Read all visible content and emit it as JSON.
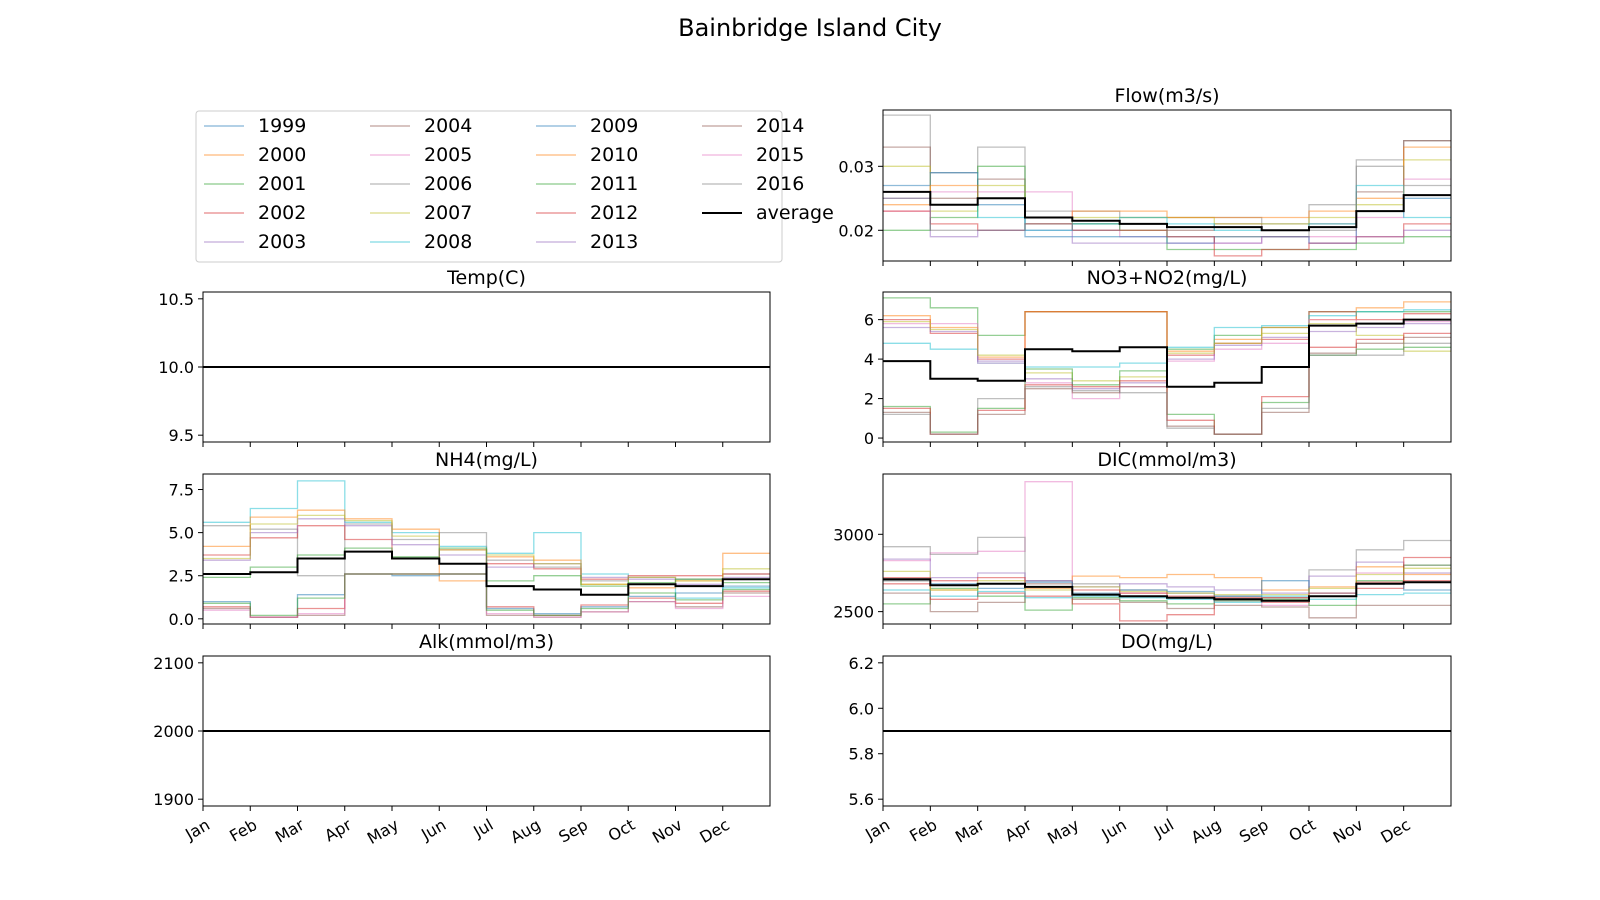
{
  "figure": {
    "title": "Bainbridge Island City"
  },
  "legend": {
    "items": [
      {
        "label": "1999",
        "color": "#1f77b4"
      },
      {
        "label": "2004",
        "color": "#8c564b"
      },
      {
        "label": "2009",
        "color": "#1f77b4"
      },
      {
        "label": "2014",
        "color": "#8c564b"
      },
      {
        "label": "2000",
        "color": "#ff7f0e"
      },
      {
        "label": "2005",
        "color": "#e377c2"
      },
      {
        "label": "2010",
        "color": "#ff7f0e"
      },
      {
        "label": "2015",
        "color": "#e377c2"
      },
      {
        "label": "2001",
        "color": "#2ca02c"
      },
      {
        "label": "2006",
        "color": "#7f7f7f"
      },
      {
        "label": "2011",
        "color": "#2ca02c"
      },
      {
        "label": "2016",
        "color": "#7f7f7f"
      },
      {
        "label": "2002",
        "color": "#d62728"
      },
      {
        "label": "2007",
        "color": "#bcbd22"
      },
      {
        "label": "2012",
        "color": "#d62728"
      },
      {
        "label": "average",
        "color": "#000000"
      },
      {
        "label": "2003",
        "color": "#9467bd"
      },
      {
        "label": "2008",
        "color": "#17becf"
      },
      {
        "label": "2013",
        "color": "#9467bd"
      }
    ]
  },
  "months": [
    "Jan",
    "Feb",
    "Mar",
    "Apr",
    "May",
    "Jun",
    "Jul",
    "Aug",
    "Sep",
    "Oct",
    "Nov",
    "Dec"
  ],
  "chart_data": [
    {
      "id": "temp",
      "type": "line",
      "title": "Temp(C)",
      "ylim": [
        9.45,
        10.55
      ],
      "yticks": [
        9.5,
        10.0,
        10.5
      ],
      "ytick_labels": [
        "9.5",
        "10.0",
        "10.5"
      ],
      "years": [],
      "average": [
        10,
        10,
        10,
        10,
        10,
        10,
        10,
        10,
        10,
        10,
        10,
        10
      ]
    },
    {
      "id": "nh4",
      "type": "line",
      "title": "NH4(mg/L)",
      "ylim": [
        -0.3,
        8.4
      ],
      "yticks": [
        0.0,
        2.5,
        5.0,
        7.5
      ],
      "ytick_labels": [
        "0.0",
        "2.5",
        "5.0",
        "7.5"
      ],
      "years": [
        {
          "name": "2008",
          "color": "#17becf",
          "values": [
            5.6,
            6.4,
            8.0,
            5.6,
            5.0,
            4.2,
            3.8,
            5.0,
            2.6,
            2.0,
            1.2,
            1.8
          ]
        },
        {
          "name": "2006",
          "color": "#7f7f7f",
          "values": [
            5.4,
            5.2,
            2.5,
            5.5,
            4.6,
            5.0,
            3.4,
            3.0,
            2.2,
            2.4,
            2.3,
            2.6
          ]
        },
        {
          "name": "2000",
          "color": "#ff7f0e",
          "values": [
            4.2,
            5.9,
            6.3,
            5.8,
            5.2,
            2.2,
            3.6,
            3.4,
            2.0,
            1.8,
            2.2,
            3.8
          ]
        },
        {
          "name": "2002",
          "color": "#d62728",
          "values": [
            3.7,
            4.7,
            5.4,
            4.6,
            3.5,
            4.0,
            3.2,
            2.9,
            2.3,
            2.5,
            2.5,
            2.6
          ]
        },
        {
          "name": "2003",
          "color": "#9467bd",
          "values": [
            3.4,
            5.0,
            5.8,
            5.4,
            4.3,
            3.7,
            3.0,
            3.2,
            2.4,
            2.3,
            2.0,
            2.4
          ]
        },
        {
          "name": "2007",
          "color": "#bcbd22",
          "values": [
            3.5,
            5.5,
            6.0,
            5.7,
            4.8,
            4.0,
            3.7,
            3.2,
            2.0,
            2.4,
            2.2,
            2.9
          ]
        },
        {
          "name": "2001",
          "color": "#2ca02c",
          "values": [
            2.4,
            3.0,
            3.7,
            4.1,
            3.6,
            4.1,
            2.2,
            2.5,
            1.9,
            2.1,
            2.3,
            2.1
          ]
        },
        {
          "name": "2009",
          "color": "#1f77b4",
          "values": [
            1.0,
            0.1,
            1.4,
            2.6,
            2.5,
            2.6,
            0.6,
            0.3,
            0.7,
            1.3,
            1.5,
            1.9
          ]
        },
        {
          "name": "2004",
          "color": "#8c564b",
          "values": [
            0.6,
            0.1,
            0.2,
            2.6,
            2.6,
            2.6,
            0.2,
            0.1,
            0.4,
            1.0,
            0.7,
            1.5
          ]
        },
        {
          "name": "2012",
          "color": "#d62728",
          "values": [
            0.7,
            0.1,
            0.6,
            2.6,
            2.6,
            2.6,
            0.7,
            0.2,
            0.8,
            1.2,
            0.9,
            1.6
          ]
        },
        {
          "name": "2015",
          "color": "#e377c2",
          "values": [
            0.5,
            0.1,
            0.3,
            2.6,
            2.6,
            2.6,
            0.3,
            0.1,
            0.4,
            1.0,
            0.6,
            1.3
          ]
        },
        {
          "name": "2011",
          "color": "#2ca02c",
          "values": [
            0.9,
            0.2,
            1.2,
            2.6,
            2.6,
            2.6,
            0.5,
            0.2,
            0.6,
            1.5,
            1.1,
            1.7
          ]
        }
      ],
      "average": [
        2.6,
        2.7,
        3.5,
        3.9,
        3.5,
        3.2,
        1.9,
        1.7,
        1.4,
        2.0,
        1.9,
        2.3
      ]
    },
    {
      "id": "alk",
      "type": "line",
      "title": "Alk(mmol/m3)",
      "ylim": [
        1890,
        2110
      ],
      "yticks": [
        1900,
        2000,
        2100
      ],
      "ytick_labels": [
        "1900",
        "2000",
        "2100"
      ],
      "years": [],
      "average": [
        2000,
        2000,
        2000,
        2000,
        2000,
        2000,
        2000,
        2000,
        2000,
        2000,
        2000,
        2000
      ]
    },
    {
      "id": "flow",
      "type": "line",
      "title": "Flow(m3/s)",
      "ylim": [
        0.0152,
        0.0388
      ],
      "yticks": [
        0.02,
        0.03
      ],
      "ytick_labels": [
        "0.02",
        "0.03"
      ],
      "years": [
        {
          "name": "2006",
          "color": "#7f7f7f",
          "values": [
            0.038,
            0.029,
            0.033,
            0.023,
            0.023,
            0.022,
            0.022,
            0.022,
            0.021,
            0.024,
            0.031,
            0.034
          ]
        },
        {
          "name": "2004",
          "color": "#8c564b",
          "values": [
            0.033,
            0.025,
            0.028,
            0.021,
            0.021,
            0.021,
            0.02,
            0.021,
            0.02,
            0.021,
            0.026,
            0.034
          ]
        },
        {
          "name": "2007",
          "color": "#bcbd22",
          "values": [
            0.03,
            0.023,
            0.027,
            0.022,
            0.022,
            0.022,
            0.022,
            0.021,
            0.021,
            0.022,
            0.024,
            0.031
          ]
        },
        {
          "name": "2005",
          "color": "#e377c2",
          "values": [
            0.023,
            0.026,
            0.026,
            0.026,
            0.02,
            0.019,
            0.019,
            0.018,
            0.019,
            0.019,
            0.022,
            0.028
          ]
        },
        {
          "name": "2001",
          "color": "#2ca02c",
          "values": [
            0.02,
            0.022,
            0.03,
            0.022,
            0.021,
            0.02,
            0.017,
            0.017,
            0.017,
            0.017,
            0.018,
            0.019
          ]
        },
        {
          "name": "1999",
          "color": "#1f77b4",
          "values": [
            0.027,
            0.029,
            0.024,
            0.019,
            0.019,
            0.019,
            0.018,
            0.019,
            0.019,
            0.018,
            0.023,
            0.025
          ]
        },
        {
          "name": "2010",
          "color": "#ff7f0e",
          "values": [
            0.024,
            0.027,
            0.025,
            0.022,
            0.023,
            0.023,
            0.022,
            0.022,
            0.022,
            0.023,
            0.025,
            0.033
          ]
        },
        {
          "name": "2002",
          "color": "#d62728",
          "values": [
            0.023,
            0.021,
            0.02,
            0.021,
            0.02,
            0.02,
            0.019,
            0.016,
            0.017,
            0.018,
            0.019,
            0.021
          ]
        },
        {
          "name": "2013",
          "color": "#9467bd",
          "values": [
            0.025,
            0.019,
            0.02,
            0.02,
            0.018,
            0.018,
            0.018,
            0.018,
            0.019,
            0.018,
            0.019,
            0.02
          ]
        },
        {
          "name": "2008",
          "color": "#17becf",
          "values": [
            0.026,
            0.024,
            0.022,
            0.02,
            0.021,
            0.022,
            0.021,
            0.02,
            0.02,
            0.021,
            0.027,
            0.022
          ]
        },
        {
          "name": "2016",
          "color": "#7f7f7f",
          "values": [
            0.025,
            0.02,
            0.02,
            0.021,
            0.02,
            0.021,
            0.019,
            0.019,
            0.019,
            0.02,
            0.03,
            0.027
          ]
        }
      ],
      "average": [
        0.026,
        0.024,
        0.025,
        0.022,
        0.0215,
        0.021,
        0.0205,
        0.0205,
        0.02,
        0.0205,
        0.023,
        0.0255
      ]
    },
    {
      "id": "no3",
      "type": "line",
      "title": "NO3+NO2(mg/L)",
      "ylim": [
        -0.2,
        7.4
      ],
      "yticks": [
        0,
        2,
        4,
        6
      ],
      "ytick_labels": [
        "0",
        "2",
        "4",
        "6"
      ],
      "years": [
        {
          "name": "2001",
          "color": "#2ca02c",
          "values": [
            7.1,
            6.6,
            5.2,
            6.4,
            6.4,
            6.4,
            4.5,
            5.2,
            5.6,
            6.4,
            6.4,
            6.4
          ]
        },
        {
          "name": "2002",
          "color": "#d62728",
          "values": [
            6.0,
            5.3,
            4.0,
            6.4,
            6.4,
            6.4,
            4.2,
            4.8,
            5.0,
            6.4,
            6.0,
            6.3
          ]
        },
        {
          "name": "2000",
          "color": "#ff7f0e",
          "values": [
            6.2,
            5.6,
            4.1,
            6.4,
            6.4,
            6.4,
            4.4,
            5.0,
            5.6,
            6.0,
            6.6,
            6.9
          ]
        },
        {
          "name": "2008",
          "color": "#17becf",
          "values": [
            4.8,
            4.5,
            3.8,
            3.6,
            3.6,
            3.8,
            4.6,
            5.6,
            5.7,
            6.2,
            6.4,
            6.5
          ]
        },
        {
          "name": "2005",
          "color": "#e377c2",
          "values": [
            5.8,
            5.8,
            3.8,
            2.8,
            2.0,
            2.6,
            3.9,
            4.5,
            4.8,
            6.0,
            5.8,
            5.9
          ]
        },
        {
          "name": "2003",
          "color": "#9467bd",
          "values": [
            5.6,
            5.4,
            3.9,
            3.0,
            2.5,
            2.8,
            4.0,
            4.7,
            5.1,
            5.4,
            5.6,
            5.8
          ]
        },
        {
          "name": "2007",
          "color": "#bcbd22",
          "values": [
            5.9,
            5.5,
            4.2,
            3.3,
            2.9,
            3.1,
            4.3,
            4.8,
            5.3,
            5.8,
            5.2,
            4.4
          ]
        },
        {
          "name": "2011",
          "color": "#2ca02c",
          "values": [
            1.6,
            0.3,
            1.5,
            3.5,
            2.7,
            3.4,
            1.2,
            0.2,
            1.8,
            4.2,
            4.5,
            4.6
          ]
        },
        {
          "name": "2004",
          "color": "#8c564b",
          "values": [
            1.3,
            0.2,
            1.2,
            2.5,
            2.3,
            2.6,
            0.6,
            0.2,
            1.3,
            4.3,
            4.8,
            5.1
          ]
        },
        {
          "name": "2012",
          "color": "#d62728",
          "values": [
            1.5,
            0.2,
            1.4,
            2.7,
            2.6,
            2.9,
            0.9,
            0.2,
            2.1,
            4.6,
            5.0,
            5.3
          ]
        },
        {
          "name": "2006",
          "color": "#7f7f7f",
          "values": [
            1.2,
            0.2,
            2.0,
            2.6,
            2.4,
            2.3,
            0.5,
            0.2,
            1.5,
            4.2,
            4.2,
            4.8
          ]
        }
      ],
      "average": [
        3.9,
        3.0,
        2.9,
        4.5,
        4.4,
        4.6,
        2.6,
        2.8,
        3.6,
        5.7,
        5.8,
        6.0
      ]
    },
    {
      "id": "dic",
      "type": "line",
      "title": "DIC(mmol/m3)",
      "ylim": [
        2420,
        3390
      ],
      "yticks": [
        2500,
        3000
      ],
      "ytick_labels": [
        "2500",
        "3000"
      ],
      "years": [
        {
          "name": "2005",
          "color": "#e377c2",
          "values": [
            2830,
            2880,
            2890,
            3340,
            2610,
            2620,
            2590,
            2570,
            2540,
            2600,
            2750,
            2800
          ]
        },
        {
          "name": "2006",
          "color": "#7f7f7f",
          "values": [
            2920,
            2870,
            2980,
            2700,
            2680,
            2640,
            2620,
            2600,
            2590,
            2770,
            2900,
            2960
          ]
        },
        {
          "name": "2010",
          "color": "#ff7f0e",
          "values": [
            2700,
            2640,
            2680,
            2650,
            2730,
            2720,
            2740,
            2720,
            2640,
            2660,
            2790,
            2740
          ]
        },
        {
          "name": "2003",
          "color": "#9467bd",
          "values": [
            2840,
            2720,
            2750,
            2700,
            2660,
            2680,
            2660,
            2640,
            2620,
            2730,
            2820,
            2750
          ]
        },
        {
          "name": "2001",
          "color": "#2ca02c",
          "values": [
            2550,
            2650,
            2600,
            2510,
            2590,
            2570,
            2550,
            2570,
            2580,
            2540,
            2700,
            2800
          ]
        },
        {
          "name": "2004",
          "color": "#8c564b",
          "values": [
            2620,
            2500,
            2560,
            2680,
            2580,
            2560,
            2520,
            2540,
            2530,
            2460,
            2540,
            2540
          ]
        },
        {
          "name": "2002",
          "color": "#d62728",
          "values": [
            2680,
            2580,
            2620,
            2600,
            2550,
            2440,
            2480,
            2580,
            2560,
            2600,
            2650,
            2850
          ]
        },
        {
          "name": "1999",
          "color": "#1f77b4",
          "values": [
            2700,
            2680,
            2650,
            2690,
            2620,
            2640,
            2630,
            2600,
            2700,
            2620,
            2680,
            2640
          ]
        },
        {
          "name": "2008",
          "color": "#17becf",
          "values": [
            2640,
            2600,
            2630,
            2590,
            2600,
            2590,
            2580,
            2560,
            2600,
            2580,
            2610,
            2620
          ]
        },
        {
          "name": "2007",
          "color": "#bcbd22",
          "values": [
            2760,
            2640,
            2700,
            2640,
            2660,
            2630,
            2620,
            2610,
            2610,
            2650,
            2740,
            2780
          ]
        },
        {
          "name": "2012",
          "color": "#d62728",
          "values": [
            2720,
            2700,
            2720,
            2660,
            2640,
            2620,
            2600,
            2590,
            2590,
            2620,
            2690,
            2700
          ]
        }
      ],
      "average": [
        2710,
        2670,
        2680,
        2660,
        2610,
        2600,
        2590,
        2580,
        2570,
        2600,
        2680,
        2690
      ]
    },
    {
      "id": "do",
      "type": "line",
      "title": "DO(mg/L)",
      "ylim": [
        5.57,
        6.23
      ],
      "yticks": [
        5.6,
        5.8,
        6.0,
        6.2
      ],
      "ytick_labels": [
        "5.6",
        "5.8",
        "6.0",
        "6.2"
      ],
      "years": [],
      "average": [
        5.9,
        5.9,
        5.9,
        5.9,
        5.9,
        5.9,
        5.9,
        5.9,
        5.9,
        5.9,
        5.9,
        5.9
      ]
    }
  ]
}
